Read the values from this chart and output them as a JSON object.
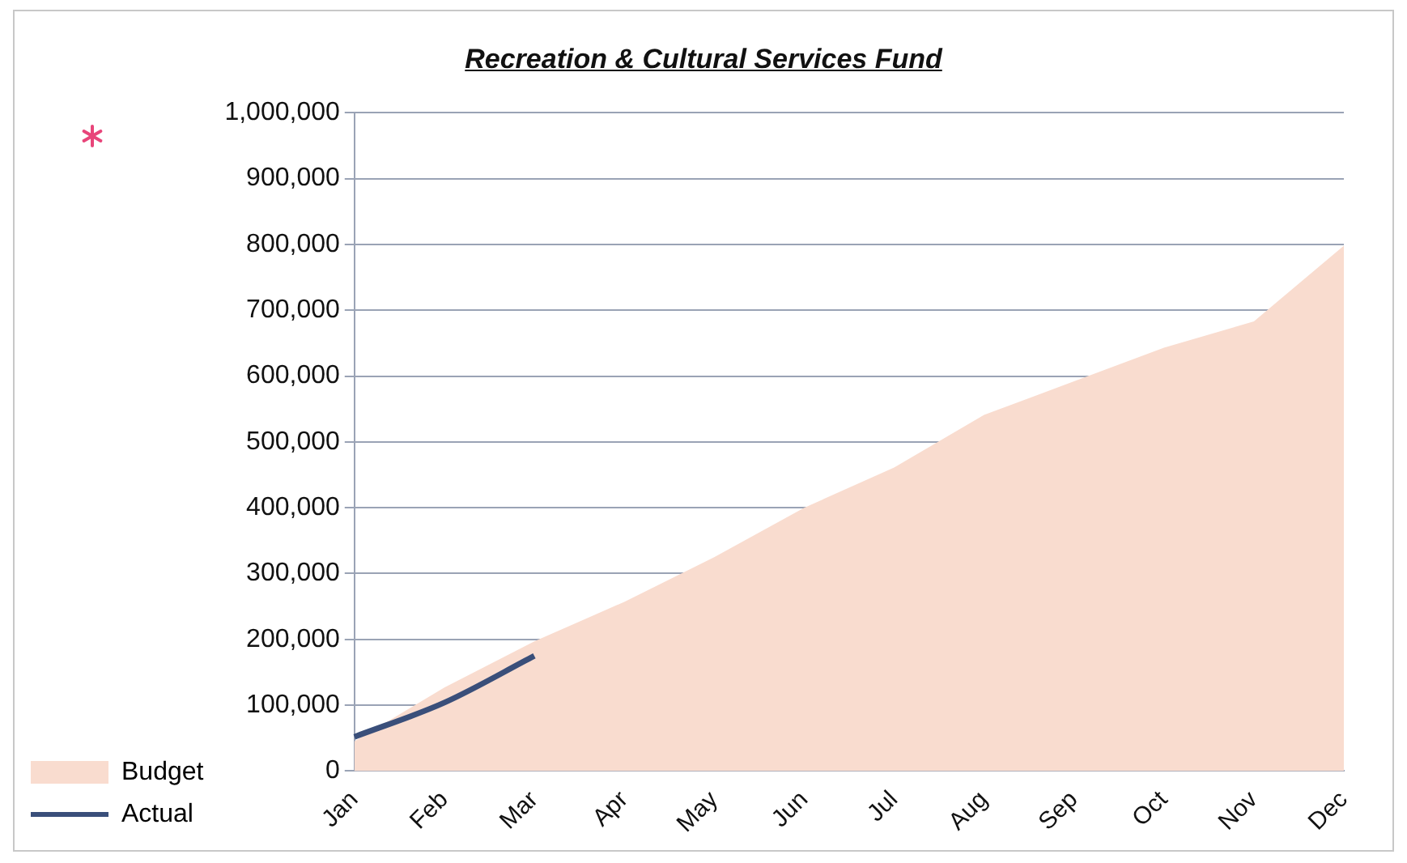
{
  "chart_data": {
    "type": "area",
    "title": "Recreation & Cultural Services Fund",
    "categories": [
      "Jan",
      "Feb",
      "Mar",
      "Apr",
      "May",
      "Jun",
      "Jul",
      "Aug",
      "Sep",
      "Oct",
      "Nov",
      "Dec"
    ],
    "series": [
      {
        "name": "Budget",
        "color": "#f9dccf",
        "values": [
          45000,
          127000,
          197000,
          257000,
          325000,
          400000,
          461000,
          541000,
          592000,
          643000,
          683000,
          798000
        ]
      },
      {
        "name": "Actual",
        "type": "line",
        "color": "#3a4f7a",
        "values": [
          52000,
          104000,
          175000,
          null,
          null,
          null,
          null,
          null,
          null,
          null,
          null,
          null
        ]
      }
    ],
    "ylim": [
      0,
      1000000
    ],
    "yticks": [
      {
        "value": 0,
        "label": "0"
      },
      {
        "value": 100000,
        "label": "100,000"
      },
      {
        "value": 200000,
        "label": "200,000"
      },
      {
        "value": 300000,
        "label": "300,000"
      },
      {
        "value": 400000,
        "label": "400,000"
      },
      {
        "value": 500000,
        "label": "500,000"
      },
      {
        "value": 600000,
        "label": "600,000"
      },
      {
        "value": 700000,
        "label": "700,000"
      },
      {
        "value": 800000,
        "label": "800,000"
      },
      {
        "value": 900000,
        "label": "900,000"
      },
      {
        "value": 1000000,
        "label": "1,000,000"
      }
    ],
    "grid": "y",
    "legend": "bottom left",
    "marker": "none",
    "line_style": "solid"
  }
}
